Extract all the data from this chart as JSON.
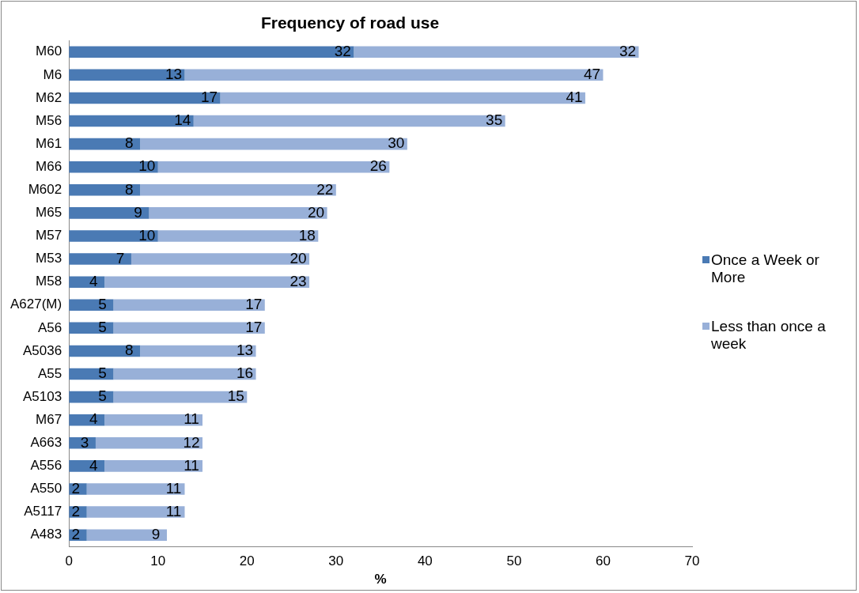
{
  "chart_data": {
    "type": "bar",
    "orientation": "horizontal",
    "stacked": true,
    "title": "Frequency of road use",
    "xlabel": "%",
    "categories": [
      "M60",
      "M6",
      "M62",
      "M56",
      "M61",
      "M66",
      "M602",
      "M65",
      "M57",
      "M53",
      "M58",
      "A627(M)",
      "A56",
      "A5036",
      "A55",
      "A5103",
      "M67",
      "A663",
      "A556",
      "A550",
      "A5117",
      "A483"
    ],
    "series": [
      {
        "name": "Once a Week or More",
        "color": "#4a7ab4",
        "values": [
          32,
          13,
          17,
          14,
          8,
          10,
          8,
          9,
          10,
          7,
          4,
          5,
          5,
          8,
          5,
          5,
          4,
          3,
          4,
          2,
          2,
          2
        ]
      },
      {
        "name": "Less than once a week",
        "color": "#98b0d8",
        "values": [
          32,
          47,
          41,
          35,
          30,
          26,
          22,
          20,
          18,
          20,
          23,
          17,
          17,
          13,
          16,
          15,
          11,
          12,
          11,
          11,
          11,
          9
        ]
      }
    ],
    "xlim": [
      0,
      70
    ],
    "xticks": [
      0,
      10,
      20,
      30,
      40,
      50,
      60,
      70
    ],
    "grid": false,
    "legend": "right",
    "data_labels": true
  }
}
